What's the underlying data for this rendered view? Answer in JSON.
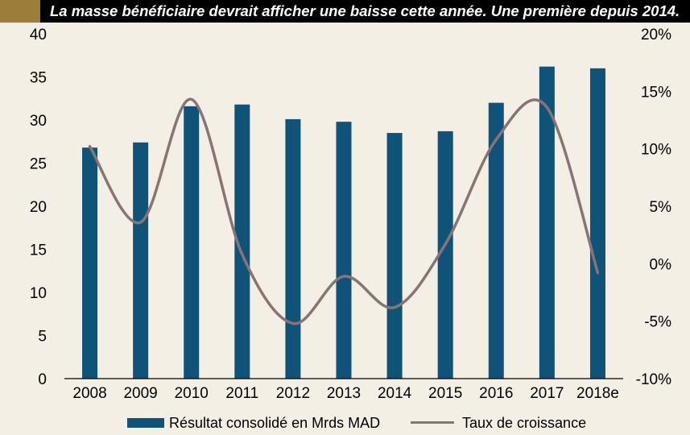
{
  "header": {
    "title": "La masse bénéficiaire devrait afficher une baisse cette année. Une première depuis 2014."
  },
  "colors": {
    "bar": "#0f5478",
    "line": "#887375",
    "header_bg": "#000000",
    "header_accent": "#9c7d3a",
    "page_bg": "#f4efe4"
  },
  "chart_data": {
    "type": "bar",
    "title": "",
    "xlabel": "",
    "ylabel": "",
    "categories": [
      "2008",
      "2009",
      "2010",
      "2011",
      "2012",
      "2013",
      "2014",
      "2015",
      "2016",
      "2017",
      "2018e"
    ],
    "ylim": [
      0,
      40
    ],
    "yticks": [
      "0",
      "5",
      "10",
      "15",
      "20",
      "25",
      "30",
      "35",
      "40"
    ],
    "y2lim": [
      -10,
      20
    ],
    "y2ticks": [
      "-10%",
      "-5%",
      "0%",
      "5%",
      "10%",
      "15%",
      "20%"
    ],
    "grid": false,
    "legend_position": "bottom",
    "series": [
      {
        "name": "Résultat consolidé en Mrds MAD",
        "type": "bar",
        "axis": "left",
        "values": [
          26.8,
          27.4,
          31.6,
          31.8,
          30.1,
          29.8,
          28.5,
          28.7,
          32.0,
          36.2,
          36.0
        ]
      },
      {
        "name": "Taux de croissance",
        "type": "line",
        "axis": "right",
        "values": [
          10.2,
          3.6,
          14.3,
          0.8,
          -5.2,
          -1.1,
          -3.8,
          1.7,
          10.8,
          13.6,
          -0.8
        ]
      }
    ]
  }
}
